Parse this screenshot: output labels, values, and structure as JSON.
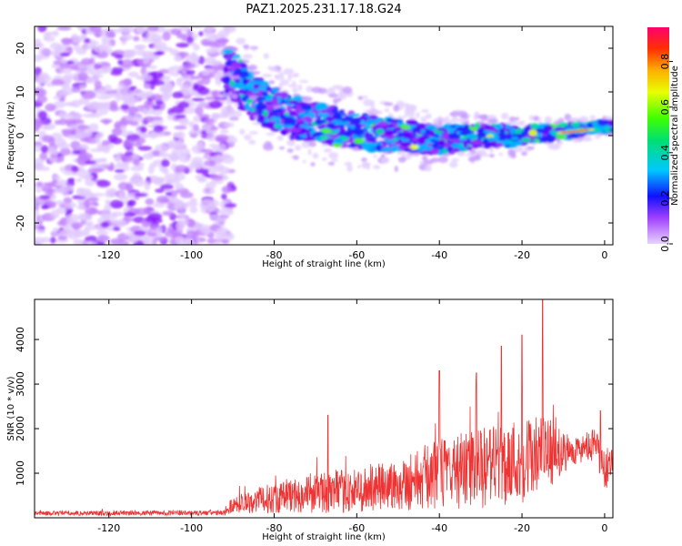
{
  "title": "PAZ1.2025.231.17.18.G24",
  "chart_data": [
    {
      "type": "heatmap",
      "name": "spectrogram",
      "xlabel": "Height of straight line (km)",
      "ylabel": "Frequency (Hz)",
      "xlim": [
        -138,
        2
      ],
      "ylim": [
        -25,
        25
      ],
      "xticks": [
        -120,
        -100,
        -80,
        -60,
        -40,
        -20,
        0
      ],
      "yticks": [
        -20,
        -10,
        0,
        10,
        20
      ],
      "colorbar": {
        "label": "Normalized spectral amplitude",
        "range": [
          0,
          0.95
        ],
        "ticks": [
          0.0,
          0.2,
          0.4,
          0.6,
          0.8
        ]
      },
      "signal_track": [
        {
          "x": -90,
          "freq": 14
        },
        {
          "x": -85,
          "freq": 9
        },
        {
          "x": -80,
          "freq": 6
        },
        {
          "x": -75,
          "freq": 4
        },
        {
          "x": -70,
          "freq": 3
        },
        {
          "x": -65,
          "freq": 2
        },
        {
          "x": -60,
          "freq": 1
        },
        {
          "x": -50,
          "freq": 0
        },
        {
          "x": -40,
          "freq": -1
        },
        {
          "x": -30,
          "freq": 0
        },
        {
          "x": -20,
          "freq": 0
        },
        {
          "x": -10,
          "freq": 1
        },
        {
          "x": 0,
          "freq": 2
        }
      ]
    },
    {
      "type": "line",
      "name": "snr",
      "xlabel": "Height of straight line (km)",
      "ylabel": "SNR (10 * v/v)",
      "xlim": [
        -138,
        2
      ],
      "ylim": [
        0,
        4900
      ],
      "xticks": [
        -120,
        -100,
        -80,
        -60,
        -40,
        -20,
        0
      ],
      "yticks": [
        1000,
        2000,
        3000,
        4000
      ],
      "color": "#ee3333",
      "envelope": [
        {
          "x": -138,
          "mean": 100,
          "spread": 50
        },
        {
          "x": -92,
          "mean": 110,
          "spread": 60
        },
        {
          "x": -90,
          "mean": 300,
          "spread": 200
        },
        {
          "x": -80,
          "mean": 450,
          "spread": 350
        },
        {
          "x": -70,
          "mean": 550,
          "spread": 450
        },
        {
          "x": -60,
          "mean": 600,
          "spread": 500
        },
        {
          "x": -50,
          "mean": 750,
          "spread": 600
        },
        {
          "x": -40,
          "mean": 1000,
          "spread": 800
        },
        {
          "x": -30,
          "mean": 1100,
          "spread": 900
        },
        {
          "x": -20,
          "mean": 1300,
          "spread": 1000
        },
        {
          "x": -15,
          "mean": 1400,
          "spread": 900
        },
        {
          "x": -8,
          "mean": 1500,
          "spread": 300
        },
        {
          "x": -2,
          "mean": 1600,
          "spread": 400
        },
        {
          "x": 0,
          "mean": 1000,
          "spread": 500
        },
        {
          "x": 2,
          "mean": 1400,
          "spread": 300
        }
      ],
      "peaks": [
        {
          "x": -67,
          "y": 2300
        },
        {
          "x": -40,
          "y": 3300
        },
        {
          "x": -31,
          "y": 3250
        },
        {
          "x": -25,
          "y": 3850
        },
        {
          "x": -20,
          "y": 4100
        },
        {
          "x": -15,
          "y": 4900
        },
        {
          "x": -1,
          "y": 2400
        }
      ]
    }
  ]
}
